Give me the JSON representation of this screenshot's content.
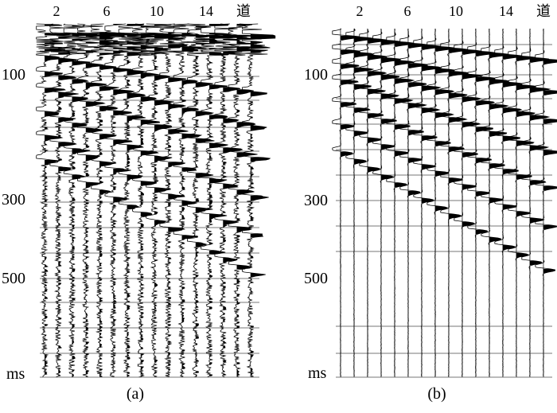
{
  "figure": {
    "panels": [
      {
        "id": "a",
        "caption": "(a)",
        "trace_axis_ticks": [
          "2",
          "6",
          "10",
          "14"
        ],
        "trace_axis_label": "道",
        "time_axis_ticks": [
          "100",
          "300",
          "500"
        ],
        "time_axis_unit": "ms",
        "traces": 16
      },
      {
        "id": "b",
        "caption": "(b)",
        "trace_axis_ticks": [
          "2",
          "6",
          "10",
          "14"
        ],
        "trace_axis_label": "道",
        "time_axis_ticks": [
          "100",
          "300",
          "500"
        ],
        "time_axis_unit": "ms",
        "traces": 16
      }
    ]
  }
}
